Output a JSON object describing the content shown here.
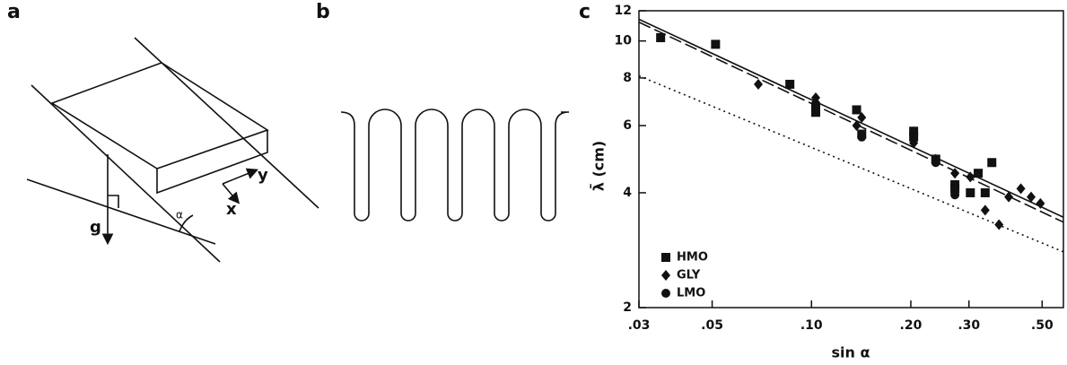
{
  "panels": {
    "a": {
      "label": "a",
      "g": "g",
      "x": "x",
      "y": "y",
      "alpha": "α"
    },
    "b": {
      "label": "b"
    }
  },
  "chart_data": {
    "type": "scatter",
    "panel_label": "c",
    "x_label": "sin  α",
    "y_label": "λ̄ (cm)",
    "xscale": "log",
    "yscale": "log",
    "xlim": [
      0.03,
      0.58
    ],
    "ylim": [
      2,
      12
    ],
    "xticks": [
      {
        "value": 0.03,
        "label": ".03"
      },
      {
        "value": 0.05,
        "label": ".05"
      },
      {
        "value": 0.1,
        "label": ".10"
      },
      {
        "value": 0.2,
        "label": ".20"
      },
      {
        "value": 0.3,
        "label": ".30"
      },
      {
        "value": 0.5,
        "label": ".50"
      }
    ],
    "yticks": [
      2,
      4,
      6,
      8,
      10,
      12
    ],
    "legend": "lower left",
    "series": [
      {
        "name": "HMO",
        "marker": "square",
        "color": "#111111",
        "x": [
          0.0349,
          0.0512,
          0.086,
          0.103,
          0.103,
          0.137,
          0.142,
          0.204,
          0.204,
          0.238,
          0.272,
          0.272,
          0.303,
          0.32,
          0.336,
          0.352
        ],
        "values": [
          10.2,
          9.8,
          7.7,
          6.7,
          6.5,
          6.6,
          5.7,
          5.8,
          5.6,
          4.9,
          4.2,
          4.1,
          4.0,
          4.5,
          4.0,
          4.8
        ]
      },
      {
        "name": "GLY",
        "marker": "diamond",
        "color": "#111111",
        "x": [
          0.069,
          0.103,
          0.103,
          0.137,
          0.142,
          0.204,
          0.238,
          0.272,
          0.303,
          0.336,
          0.37,
          0.396,
          0.431,
          0.463,
          0.494
        ],
        "values": [
          7.7,
          7.1,
          6.9,
          6.0,
          6.3,
          5.4,
          4.9,
          4.5,
          4.4,
          3.6,
          3.3,
          3.9,
          4.1,
          3.9,
          3.75
        ]
      },
      {
        "name": "LMO",
        "marker": "circle",
        "color": "#111111",
        "x": [
          0.142,
          0.238,
          0.272
        ],
        "values": [
          5.6,
          4.8,
          3.95
        ]
      }
    ],
    "fits": [
      {
        "style": "solid",
        "x": [
          0.03,
          0.58
        ],
        "y": [
          11.4,
          3.45
        ]
      },
      {
        "style": "dashed",
        "x": [
          0.03,
          0.58
        ],
        "y": [
          11.2,
          3.35
        ]
      },
      {
        "style": "dotted",
        "x": [
          0.03,
          0.58
        ],
        "y": [
          8.1,
          2.8
        ]
      }
    ]
  }
}
